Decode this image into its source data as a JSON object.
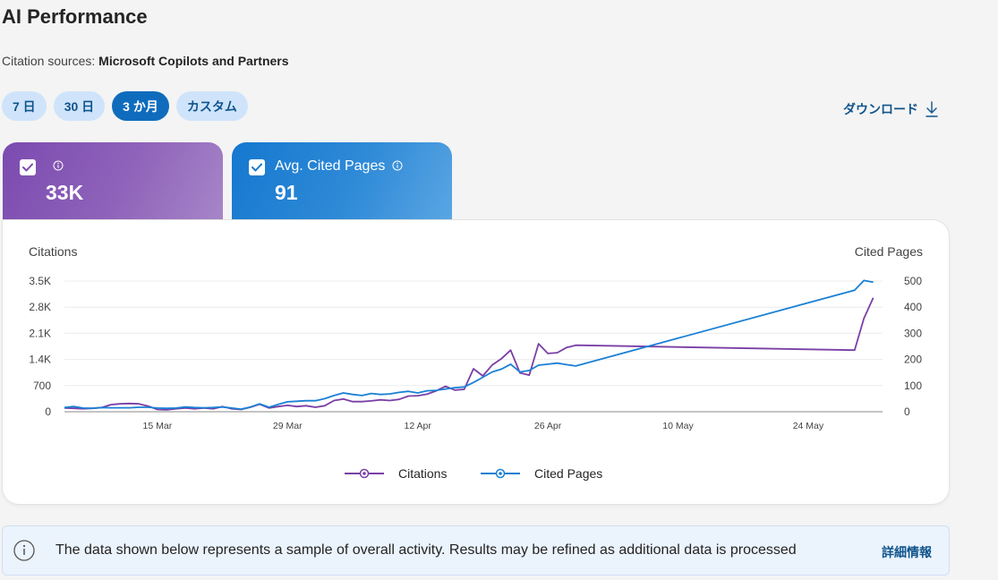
{
  "header": {
    "title": "AI Performance",
    "citation_sources_label": "Citation sources:",
    "citation_sources_value": "Microsoft Copilots and Partners"
  },
  "range_tabs": [
    {
      "label": "7 日",
      "active": false
    },
    {
      "label": "30 日",
      "active": false
    },
    {
      "label": "3 か月",
      "active": true
    },
    {
      "label": "カスタム",
      "active": false
    }
  ],
  "download_label": "ダウンロード",
  "metrics": [
    {
      "label": "",
      "value": "33K",
      "checked": true
    },
    {
      "label": "Avg. Cited Pages",
      "value": "91",
      "checked": true
    }
  ],
  "notice": {
    "text": "The data shown below represents a sample of overall activity. Results may be refined as additional data is processed",
    "link": "詳細情報"
  },
  "colors": {
    "citations": "#7a3fa6",
    "cited_pages": "#1a80d4",
    "accent": "#0f6cbd"
  },
  "chart_data": {
    "type": "line",
    "left_axis_title": "Citations",
    "right_axis_title": "Cited Pages",
    "y_left": {
      "range": [
        0,
        3500
      ],
      "ticks": [
        0,
        700,
        1400,
        2100,
        2800,
        3500
      ],
      "tick_labels": [
        "0",
        "700",
        "1.4K",
        "2.1K",
        "2.8K",
        "3.5K"
      ]
    },
    "y_right": {
      "range": [
        0,
        500
      ],
      "ticks": [
        0,
        100,
        200,
        300,
        400,
        500
      ],
      "tick_labels": [
        "0",
        "100",
        "200",
        "300",
        "400",
        "500"
      ]
    },
    "x_ticks": [
      "15 Mar",
      "29 Mar",
      "12 Apr",
      "26 Apr",
      "10 May",
      "24 May"
    ],
    "x_tick_dates": [
      "2025-03-15",
      "2025-03-29",
      "2025-04-12",
      "2025-04-26",
      "2025-05-10",
      "2025-05-24"
    ],
    "x_range": [
      "2025-03-05",
      "2025-06-01"
    ],
    "grid": true,
    "legend_position": "bottom",
    "series": [
      {
        "name": "Citations",
        "axis": "left",
        "color": "#7a3fa6",
        "points": [
          [
            "2025-03-05",
            100
          ],
          [
            "2025-03-06",
            90
          ],
          [
            "2025-03-07",
            80
          ],
          [
            "2025-03-08",
            90
          ],
          [
            "2025-03-09",
            110
          ],
          [
            "2025-03-10",
            190
          ],
          [
            "2025-03-11",
            210
          ],
          [
            "2025-03-12",
            220
          ],
          [
            "2025-03-13",
            210
          ],
          [
            "2025-03-14",
            150
          ],
          [
            "2025-03-15",
            60
          ],
          [
            "2025-03-16",
            50
          ],
          [
            "2025-03-17",
            80
          ],
          [
            "2025-03-18",
            100
          ],
          [
            "2025-03-19",
            80
          ],
          [
            "2025-03-20",
            100
          ],
          [
            "2025-03-21",
            80
          ],
          [
            "2025-03-22",
            140
          ],
          [
            "2025-03-23",
            80
          ],
          [
            "2025-03-24",
            60
          ],
          [
            "2025-03-25",
            120
          ],
          [
            "2025-03-26",
            200
          ],
          [
            "2025-03-27",
            100
          ],
          [
            "2025-03-28",
            140
          ],
          [
            "2025-03-29",
            170
          ],
          [
            "2025-03-30",
            140
          ],
          [
            "2025-03-31",
            160
          ],
          [
            "2025-04-01",
            120
          ],
          [
            "2025-04-02",
            160
          ],
          [
            "2025-04-03",
            300
          ],
          [
            "2025-04-04",
            340
          ],
          [
            "2025-04-05",
            270
          ],
          [
            "2025-04-06",
            270
          ],
          [
            "2025-04-07",
            290
          ],
          [
            "2025-04-08",
            320
          ],
          [
            "2025-04-09",
            300
          ],
          [
            "2025-04-10",
            330
          ],
          [
            "2025-04-11",
            420
          ],
          [
            "2025-04-12",
            430
          ],
          [
            "2025-04-13",
            470
          ],
          [
            "2025-04-14",
            560
          ],
          [
            "2025-04-15",
            680
          ],
          [
            "2025-04-16",
            580
          ],
          [
            "2025-04-17",
            600
          ],
          [
            "2025-04-18",
            1150
          ],
          [
            "2025-04-19",
            960
          ],
          [
            "2025-04-20",
            1250
          ],
          [
            "2025-04-21",
            1420
          ],
          [
            "2025-04-22",
            1650
          ],
          [
            "2025-04-23",
            1040
          ],
          [
            "2025-04-24",
            980
          ],
          [
            "2025-04-25",
            1820
          ],
          [
            "2025-04-26",
            1560
          ],
          [
            "2025-04-27",
            1580
          ],
          [
            "2025-04-28",
            1720
          ],
          [
            "2025-04-29",
            1780
          ],
          [
            "2025-05-29",
            1650
          ],
          [
            "2025-05-30",
            2500
          ],
          [
            "2025-05-31",
            3050
          ]
        ]
      },
      {
        "name": "Cited Pages",
        "axis": "right",
        "color": "#1a80d4",
        "points": [
          [
            "2025-03-05",
            16
          ],
          [
            "2025-03-06",
            20
          ],
          [
            "2025-03-07",
            14
          ],
          [
            "2025-03-08",
            13
          ],
          [
            "2025-03-09",
            16
          ],
          [
            "2025-03-10",
            15
          ],
          [
            "2025-03-11",
            15
          ],
          [
            "2025-03-12",
            15
          ],
          [
            "2025-03-13",
            17
          ],
          [
            "2025-03-14",
            17
          ],
          [
            "2025-03-15",
            14
          ],
          [
            "2025-03-16",
            13
          ],
          [
            "2025-03-17",
            14
          ],
          [
            "2025-03-18",
            18
          ],
          [
            "2025-03-19",
            16
          ],
          [
            "2025-03-20",
            15
          ],
          [
            "2025-03-21",
            16
          ],
          [
            "2025-03-22",
            18
          ],
          [
            "2025-03-23",
            14
          ],
          [
            "2025-03-24",
            10
          ],
          [
            "2025-03-25",
            18
          ],
          [
            "2025-03-26",
            30
          ],
          [
            "2025-03-27",
            17
          ],
          [
            "2025-03-28",
            28
          ],
          [
            "2025-03-29",
            38
          ],
          [
            "2025-03-30",
            40
          ],
          [
            "2025-03-31",
            42
          ],
          [
            "2025-04-01",
            42
          ],
          [
            "2025-04-02",
            50
          ],
          [
            "2025-04-03",
            62
          ],
          [
            "2025-04-04",
            72
          ],
          [
            "2025-04-05",
            66
          ],
          [
            "2025-04-06",
            62
          ],
          [
            "2025-04-07",
            70
          ],
          [
            "2025-04-08",
            66
          ],
          [
            "2025-04-09",
            68
          ],
          [
            "2025-04-10",
            74
          ],
          [
            "2025-04-11",
            78
          ],
          [
            "2025-04-12",
            72
          ],
          [
            "2025-04-13",
            80
          ],
          [
            "2025-04-14",
            82
          ],
          [
            "2025-04-15",
            87
          ],
          [
            "2025-04-16",
            92
          ],
          [
            "2025-04-17",
            95
          ],
          [
            "2025-04-18",
            112
          ],
          [
            "2025-04-19",
            132
          ],
          [
            "2025-04-20",
            152
          ],
          [
            "2025-04-21",
            163
          ],
          [
            "2025-04-22",
            182
          ],
          [
            "2025-04-23",
            152
          ],
          [
            "2025-04-24",
            158
          ],
          [
            "2025-04-25",
            178
          ],
          [
            "2025-04-26",
            182
          ],
          [
            "2025-04-27",
            186
          ],
          [
            "2025-04-28",
            180
          ],
          [
            "2025-04-29",
            175
          ],
          [
            "2025-05-29",
            465
          ],
          [
            "2025-05-30",
            502
          ],
          [
            "2025-05-31",
            496
          ]
        ]
      }
    ]
  }
}
